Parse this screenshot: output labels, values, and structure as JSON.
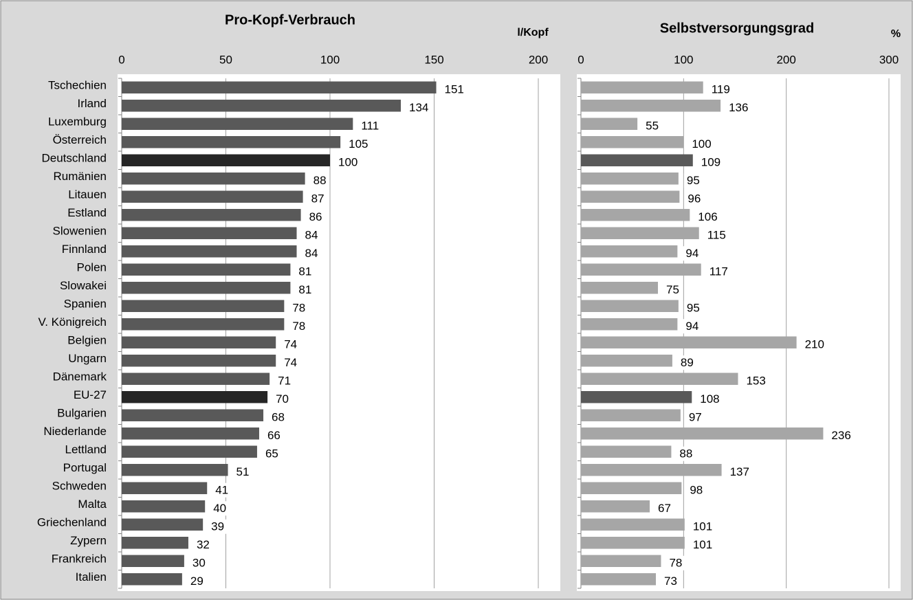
{
  "chart_data": [
    {
      "type": "barh",
      "title": "Pro-Kopf-Verbrauch",
      "unit_label": "l/Kopf",
      "categories": [
        "Tschechien",
        "Irland",
        "Luxemburg",
        "Österreich",
        "Deutschland",
        "Rumänien",
        "Litauen",
        "Estland",
        "Slowenien",
        "Finnland",
        "Polen",
        "Slowakei",
        "Spanien",
        "V. Königreich",
        "Belgien",
        "Ungarn",
        "Dänemark",
        "EU-27",
        "Bulgarien",
        "Niederlande",
        "Lettland",
        "Portugal",
        "Schweden",
        "Malta",
        "Griechenland",
        "Zypern",
        "Frankreich",
        "Italien"
      ],
      "values": [
        151,
        134,
        111,
        105,
        100,
        88,
        87,
        86,
        84,
        84,
        81,
        81,
        78,
        78,
        74,
        74,
        71,
        70,
        68,
        66,
        65,
        51,
        41,
        40,
        39,
        32,
        30,
        29
      ],
      "colors": [
        "#595959",
        "#595959",
        "#595959",
        "#595959",
        "#262626",
        "#595959",
        "#595959",
        "#595959",
        "#595959",
        "#595959",
        "#595959",
        "#595959",
        "#595959",
        "#595959",
        "#595959",
        "#595959",
        "#595959",
        "#262626",
        "#595959",
        "#595959",
        "#595959",
        "#595959",
        "#595959",
        "#595959",
        "#595959",
        "#595959",
        "#595959",
        "#595959"
      ],
      "xlim": [
        0,
        200
      ],
      "xticks": [
        0,
        50,
        100,
        150,
        200
      ],
      "grid": true
    },
    {
      "type": "barh",
      "title": "Selbstversorgungsgrad",
      "unit_label": "%",
      "values": [
        119,
        136,
        55,
        100,
        109,
        95,
        96,
        106,
        115,
        94,
        117,
        75,
        95,
        94,
        210,
        89,
        153,
        108,
        97,
        236,
        88,
        137,
        98,
        67,
        101,
        101,
        78,
        73
      ],
      "colors": [
        "#a6a6a6",
        "#a6a6a6",
        "#a6a6a6",
        "#a6a6a6",
        "#595959",
        "#a6a6a6",
        "#a6a6a6",
        "#a6a6a6",
        "#a6a6a6",
        "#a6a6a6",
        "#a6a6a6",
        "#a6a6a6",
        "#a6a6a6",
        "#a6a6a6",
        "#a6a6a6",
        "#a6a6a6",
        "#a6a6a6",
        "#595959",
        "#a6a6a6",
        "#a6a6a6",
        "#a6a6a6",
        "#a6a6a6",
        "#a6a6a6",
        "#a6a6a6",
        "#a6a6a6",
        "#a6a6a6",
        "#a6a6a6",
        "#a6a6a6"
      ],
      "xlim": [
        0,
        300
      ],
      "xticks": [
        0,
        100,
        200,
        300
      ],
      "grid": true
    }
  ]
}
